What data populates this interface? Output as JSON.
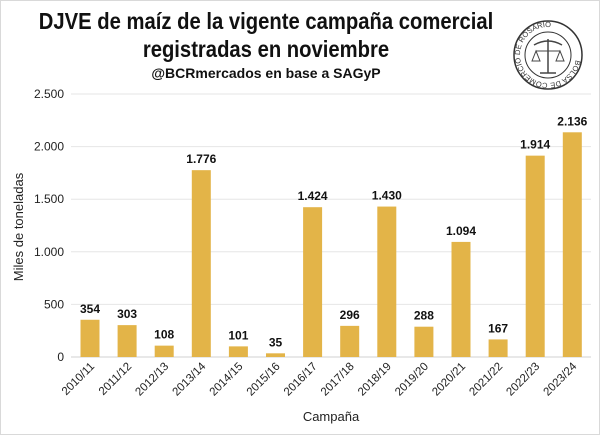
{
  "chart_data": {
    "type": "bar",
    "title": "DJVE de maíz de la vigente campaña comercial registradas en noviembre",
    "title_lines": [
      "DJVE de maíz de la vigente campaña comercial",
      "registradas en noviembre"
    ],
    "subtitle": "@BCRmercados en base a SAGyP",
    "xlabel": "Campaña",
    "ylabel": "Miles de toneladas",
    "categories": [
      "2010/11",
      "2011/12",
      "2012/13",
      "2013/14",
      "2014/15",
      "2015/16",
      "2016/17",
      "2017/18",
      "2018/19",
      "2019/20",
      "2020/21",
      "2021/22",
      "2022/23",
      "2023/24"
    ],
    "values": [
      354,
      303,
      108,
      1776,
      101,
      35,
      1424,
      296,
      1430,
      288,
      1094,
      167,
      1914,
      2136
    ],
    "data_labels": [
      "354",
      "303",
      "108",
      "1.776",
      "101",
      "35",
      "1.424",
      "296",
      "1.430",
      "288",
      "1.094",
      "167",
      "1.914",
      "2.136"
    ],
    "ylim": [
      0,
      2500
    ],
    "yticks": [
      0,
      500,
      1000,
      1500,
      2000,
      2500
    ],
    "ytick_labels": [
      "0",
      "500",
      "1.000",
      "1.500",
      "2.000",
      "2.500"
    ],
    "grid": true,
    "legend": "none",
    "bar_color": "#E3B448"
  },
  "logo": {
    "text": "BOLSA DE COMERCIO DE ROSARIO"
  }
}
